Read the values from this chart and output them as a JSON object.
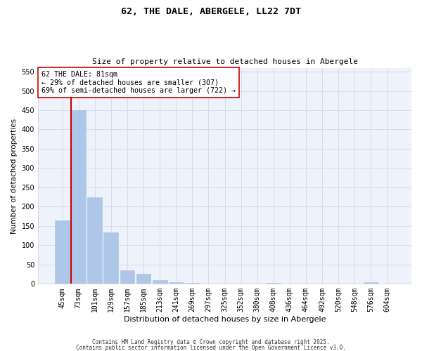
{
  "title1": "62, THE DALE, ABERGELE, LL22 7DT",
  "title2": "Size of property relative to detached houses in Abergele",
  "xlabel": "Distribution of detached houses by size in Abergele",
  "ylabel": "Number of detached properties",
  "bar_labels": [
    "45sqm",
    "73sqm",
    "101sqm",
    "129sqm",
    "157sqm",
    "185sqm",
    "213sqm",
    "241sqm",
    "269sqm",
    "297sqm",
    "325sqm",
    "352sqm",
    "380sqm",
    "408sqm",
    "436sqm",
    "464sqm",
    "492sqm",
    "520sqm",
    "548sqm",
    "576sqm",
    "604sqm"
  ],
  "bar_values": [
    165,
    450,
    225,
    133,
    36,
    26,
    9,
    5,
    3,
    0,
    0,
    0,
    0,
    3,
    0,
    0,
    0,
    0,
    0,
    5,
    0
  ],
  "bar_color": "#aec6e8",
  "bar_edgecolor": "#aec6e8",
  "ylim": [
    0,
    560
  ],
  "yticks": [
    0,
    50,
    100,
    150,
    200,
    250,
    300,
    350,
    400,
    450,
    500,
    550
  ],
  "red_line_color": "#cc0000",
  "annotation_text": "62 THE DALE: 81sqm\n← 29% of detached houses are smaller (307)\n69% of semi-detached houses are larger (722) →",
  "annotation_box_color": "#ffffff",
  "annotation_box_edgecolor": "#cc0000",
  "grid_color": "#d0d8e8",
  "background_color": "#eef2fb",
  "footer1": "Contains HM Land Registry data © Crown copyright and database right 2025.",
  "footer2": "Contains public sector information licensed under the Open Government Licence v3.0."
}
